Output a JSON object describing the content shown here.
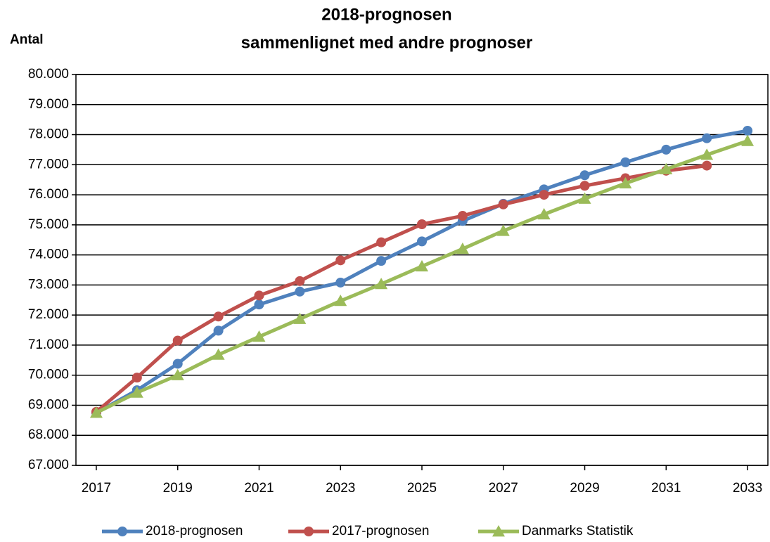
{
  "chart_data": {
    "type": "line",
    "title": "2018-prognosen",
    "subtitle": "sammenlignet med andre prognoser",
    "y_label": "Antal",
    "x": [
      2017,
      2018,
      2019,
      2020,
      2021,
      2022,
      2023,
      2024,
      2025,
      2026,
      2027,
      2028,
      2029,
      2030,
      2031,
      2032,
      2033
    ],
    "series": [
      {
        "name": "2018-prognosen",
        "color": "#4f81bd",
        "marker": "circle",
        "values": [
          68750,
          69500,
          70380,
          71480,
          72350,
          72780,
          73080,
          73800,
          74450,
          75130,
          75700,
          76180,
          76650,
          77080,
          77500,
          77880,
          78130
        ]
      },
      {
        "name": "2017-prognosen",
        "color": "#c0504d",
        "marker": "circle",
        "values": [
          68780,
          69920,
          71150,
          71950,
          72650,
          73130,
          73820,
          74420,
          75020,
          75300,
          75680,
          76000,
          76300,
          76550,
          76800,
          76970,
          null
        ]
      },
      {
        "name": "Danmarks Statistik",
        "color": "#9bbb59",
        "marker": "triangle",
        "values": [
          68750,
          69420,
          70000,
          70680,
          71280,
          71870,
          72470,
          73030,
          73620,
          74200,
          74800,
          75350,
          75870,
          76380,
          76850,
          77330,
          77790
        ]
      }
    ],
    "xlim": [
      2016.5,
      2033.5
    ],
    "xticks": [
      2017,
      2019,
      2021,
      2023,
      2025,
      2027,
      2029,
      2031,
      2033
    ],
    "ylim": [
      67000,
      80000
    ],
    "yticks": [
      {
        "value": 67000,
        "label": "67.000"
      },
      {
        "value": 68000,
        "label": "68.000"
      },
      {
        "value": 69000,
        "label": "69.000"
      },
      {
        "value": 70000,
        "label": "70.000"
      },
      {
        "value": 71000,
        "label": "71.000"
      },
      {
        "value": 72000,
        "label": "72.000"
      },
      {
        "value": 73000,
        "label": "73.000"
      },
      {
        "value": 74000,
        "label": "74.000"
      },
      {
        "value": 75000,
        "label": "75.000"
      },
      {
        "value": 76000,
        "label": "76.000"
      },
      {
        "value": 77000,
        "label": "77.000"
      },
      {
        "value": 78000,
        "label": "78.000"
      },
      {
        "value": 79000,
        "label": "79.000"
      },
      {
        "value": 80000,
        "label": "80.000"
      }
    ],
    "grid": true,
    "legend": "bottom"
  }
}
